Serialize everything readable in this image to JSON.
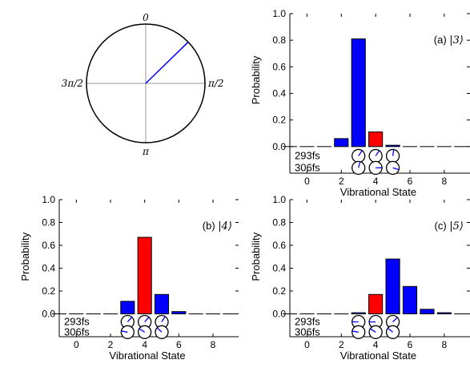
{
  "colors": {
    "blue": "#0000ff",
    "red": "#ff0000",
    "needle": "#0000ff",
    "axis": "#000000",
    "guide": "#999999"
  },
  "dial": {
    "labels": {
      "top": "0",
      "right": "π/2",
      "bottom": "π",
      "left": "3π/2"
    },
    "needle_angle": 0.8,
    "needle_radius_fraction": 1.0
  },
  "chart_data": [
    {
      "type": "bar",
      "panel_label_prefix": "(a) ",
      "panel_label_math": "|3⟩",
      "xlabel": "Vibrational State",
      "ylabel": "Probability",
      "xlim": [
        -1,
        9.5
      ],
      "ylim": [
        -0.2,
        1.0
      ],
      "xticks": [
        "0",
        "2",
        "4",
        "6",
        "8"
      ],
      "yticks": [
        "0.0",
        "0.2",
        "0.4",
        "0.6",
        "0.8",
        "1.0"
      ],
      "x": [
        -1,
        0,
        1,
        2,
        3,
        4,
        5,
        6,
        7,
        8,
        9
      ],
      "values": [
        0.0,
        0.0,
        0.0,
        0.06,
        0.81,
        0.11,
        0.01,
        0.0,
        0.0,
        0.0,
        0.0
      ],
      "highlight_state": 4,
      "time_labels": [
        "293fs",
        "306fs"
      ],
      "phase_states": [
        3,
        4,
        5
      ],
      "phases": [
        [
          0.6,
          0.6,
          0.15
        ],
        [
          0.25,
          1.55,
          1.85
        ]
      ]
    },
    {
      "type": "bar",
      "panel_label_prefix": "(b) ",
      "panel_label_math": "|4⟩",
      "xlabel": "Vibrational State",
      "ylabel": "Probability",
      "xlim": [
        -1,
        9.5
      ],
      "ylim": [
        -0.2,
        1.0
      ],
      "xticks": [
        "0",
        "2",
        "4",
        "6",
        "8"
      ],
      "yticks": [
        "0.0",
        "0.2",
        "0.4",
        "0.6",
        "0.8",
        "1.0"
      ],
      "x": [
        -1,
        0,
        1,
        2,
        3,
        4,
        5,
        6,
        7,
        8,
        9
      ],
      "values": [
        0.0,
        0.0,
        0.0,
        0.0,
        0.11,
        0.67,
        0.17,
        0.02,
        0.0,
        0.0,
        0.0
      ],
      "highlight_state": 4,
      "time_labels": [
        "293fs",
        "306fs"
      ],
      "phase_states": [
        3,
        4,
        5
      ],
      "phases": [
        [
          0.75,
          0.75,
          0.55
        ],
        [
          -1.4,
          -1.0,
          -0.8
        ]
      ]
    },
    {
      "type": "bar",
      "panel_label_prefix": "(c) ",
      "panel_label_math": "|5⟩",
      "xlabel": "Vibrational State",
      "ylabel": "Probability",
      "xlim": [
        -1,
        9.5
      ],
      "ylim": [
        -0.2,
        1.0
      ],
      "xticks": [
        "0",
        "2",
        "4",
        "6",
        "8"
      ],
      "yticks": [
        "0.0",
        "0.2",
        "0.4",
        "0.6",
        "0.8",
        "1.0"
      ],
      "x": [
        -1,
        0,
        1,
        2,
        3,
        4,
        5,
        6,
        7,
        8,
        9
      ],
      "values": [
        0.0,
        0.0,
        0.0,
        0.0,
        0.01,
        0.17,
        0.48,
        0.24,
        0.04,
        0.01,
        0.0
      ],
      "highlight_state": 4,
      "time_labels": [
        "293fs",
        "306fs"
      ],
      "phase_states": [
        3,
        4,
        5
      ],
      "phases": [
        [
          -1.57,
          -1.57,
          0.8
        ],
        [
          -1.4,
          -1.0,
          -0.9
        ]
      ]
    }
  ]
}
